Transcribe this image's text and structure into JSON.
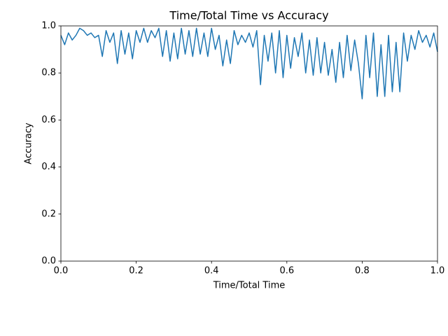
{
  "chart_data": {
    "type": "line",
    "title": "Time/Total Time vs Accuracy",
    "x_label": "Time/Total Time",
    "y_label": "Accuracy",
    "xlim": [
      0,
      1
    ],
    "ylim": [
      0,
      1
    ],
    "xticks": [
      {
        "value": 0,
        "label": "0.0"
      },
      0.2,
      0.4,
      0.6,
      0.8,
      {
        "value": 1,
        "label": "1.0"
      }
    ],
    "yticks": [
      {
        "value": 0,
        "label": "0.0"
      },
      0.2,
      0.4,
      0.6,
      0.8,
      {
        "value": 1,
        "label": "1.0"
      }
    ],
    "grid": false,
    "x": [
      0,
      0.01,
      0.02,
      0.03,
      0.04,
      0.05,
      0.06,
      0.07,
      0.08,
      0.09,
      0.1,
      0.11,
      0.12,
      0.13,
      0.14,
      0.15,
      0.16,
      0.17,
      0.18,
      0.19,
      0.2,
      0.21,
      0.22,
      0.23,
      0.24,
      0.25,
      0.26,
      0.27,
      0.28,
      0.29,
      0.3,
      0.31,
      0.32,
      0.33,
      0.34,
      0.35,
      0.36,
      0.37,
      0.38,
      0.39,
      0.4,
      0.41,
      0.42,
      0.43,
      0.44,
      0.45,
      0.46,
      0.47,
      0.48,
      0.49,
      0.5,
      0.51,
      0.52,
      0.53,
      0.54,
      0.55,
      0.56,
      0.57,
      0.58,
      0.59,
      0.6,
      0.61,
      0.62,
      0.63,
      0.64,
      0.65,
      0.66,
      0.67,
      0.68,
      0.69,
      0.7,
      0.71,
      0.72,
      0.73,
      0.74,
      0.75,
      0.76,
      0.77,
      0.78,
      0.79,
      0.8,
      0.81,
      0.82,
      0.83,
      0.84,
      0.85,
      0.86,
      0.87,
      0.88,
      0.89,
      0.9,
      0.91,
      0.92,
      0.93,
      0.94,
      0.95,
      0.96,
      0.97,
      0.98,
      0.99,
      1
    ],
    "series": [
      {
        "color": "#1f77b4",
        "values": [
          0.96,
          0.92,
          0.97,
          0.94,
          0.96,
          0.99,
          0.98,
          0.96,
          0.97,
          0.95,
          0.96,
          0.87,
          0.98,
          0.93,
          0.97,
          0.84,
          0.98,
          0.88,
          0.97,
          0.86,
          0.98,
          0.93,
          0.99,
          0.93,
          0.98,
          0.95,
          0.99,
          0.87,
          0.98,
          0.85,
          0.97,
          0.86,
          0.99,
          0.88,
          0.98,
          0.87,
          0.99,
          0.88,
          0.97,
          0.87,
          0.99,
          0.9,
          0.96,
          0.83,
          0.94,
          0.84,
          0.98,
          0.92,
          0.96,
          0.93,
          0.97,
          0.91,
          0.98,
          0.75,
          0.96,
          0.85,
          0.97,
          0.8,
          0.98,
          0.78,
          0.96,
          0.82,
          0.95,
          0.87,
          0.97,
          0.8,
          0.94,
          0.79,
          0.95,
          0.8,
          0.93,
          0.79,
          0.9,
          0.76,
          0.93,
          0.78,
          0.96,
          0.81,
          0.94,
          0.84,
          0.69,
          0.96,
          0.78,
          0.97,
          0.7,
          0.92,
          0.7,
          0.96,
          0.72,
          0.93,
          0.72,
          0.97,
          0.85,
          0.96,
          0.9,
          0.98,
          0.93,
          0.96,
          0.91,
          0.97,
          0.89
        ]
      }
    ]
  }
}
